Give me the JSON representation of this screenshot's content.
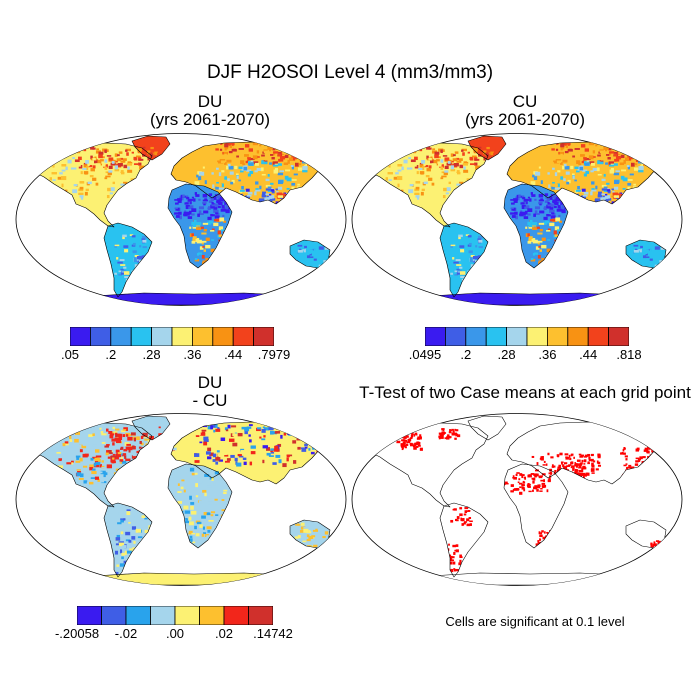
{
  "title": "DJF H2OSOI Level 4 (mm3/mm3)",
  "panels": [
    {
      "id": "du",
      "title_lines": [
        "DU",
        "(yrs 2061-2070)"
      ],
      "colorbar": {
        "colors": [
          "#3a1bf0",
          "#3f5ee6",
          "#3a97ea",
          "#29c2f0",
          "#a5d5ec",
          "#fcf173",
          "#fdc02f",
          "#f89213",
          "#f2421c",
          "#d0302c"
        ],
        "tick_labels": [
          ".05",
          ".2",
          ".28",
          ".36",
          ".44",
          ".7979"
        ]
      }
    },
    {
      "id": "cu",
      "title_lines": [
        "CU",
        "(yrs 2061-2070)"
      ],
      "colorbar": {
        "colors": [
          "#3a1bf0",
          "#3f5ee6",
          "#3a97ea",
          "#29c2f0",
          "#a5d5ec",
          "#fcf173",
          "#fdc02f",
          "#f89213",
          "#f2421c",
          "#d0302c"
        ],
        "tick_labels": [
          ".0495",
          ".2",
          ".28",
          ".36",
          ".44",
          ".818"
        ]
      }
    },
    {
      "id": "diff",
      "title_lines": [
        "DU",
        "- CU"
      ],
      "colorbar": {
        "colors": [
          "#3a1bf0",
          "#3f5ee6",
          "#29a3ec",
          "#a5d5ec",
          "#fcf173",
          "#fdc02f",
          "#f2261b",
          "#d0302c"
        ],
        "tick_labels": [
          "-.20058",
          "-.02",
          ".00",
          ".02",
          ".14742"
        ]
      }
    },
    {
      "id": "ttest",
      "title_lines": [
        "T-Test of two Case means at each grid point"
      ],
      "note": "Cells are significant at 0.1 level",
      "significant_color": "#ff0000"
    }
  ]
}
